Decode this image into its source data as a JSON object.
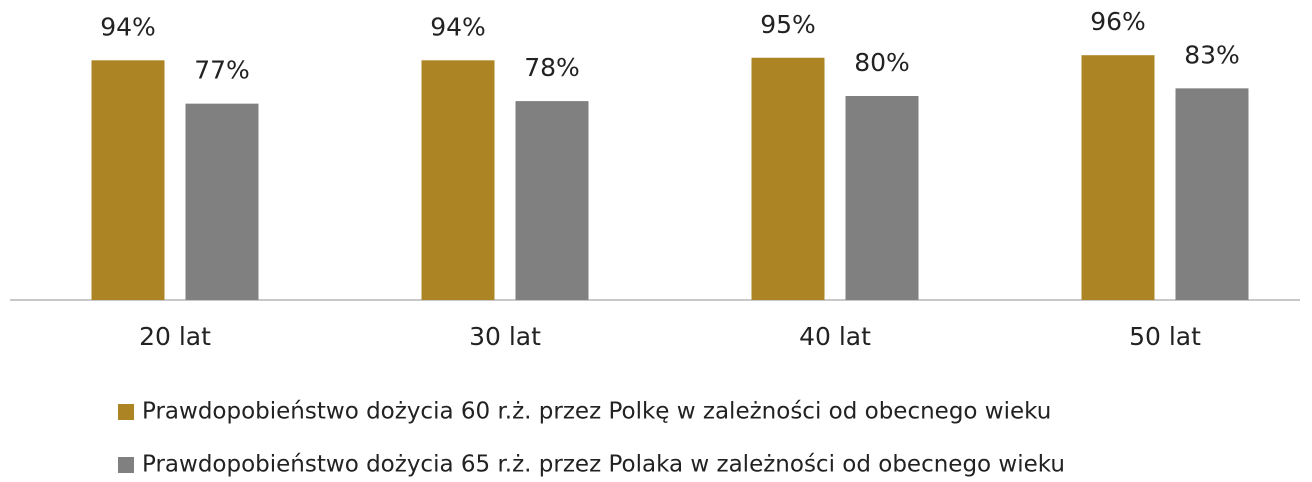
{
  "chart_data": {
    "type": "bar",
    "categories": [
      "20 lat",
      "30 lat",
      "40 lat",
      "50 lat"
    ],
    "series": [
      {
        "name": "Prawdopobieństwo dożycia 60 r.ż. przez Polkę w zależności od obecnego wieku",
        "color": "#ad8423",
        "values": [
          94,
          94,
          95,
          96
        ],
        "value_labels": [
          "94%",
          "94%",
          "95%",
          "96%"
        ]
      },
      {
        "name": "Prawdopobieństwo dożycia 65 r.ż. przez Polaka w zależności od obecnego wieku",
        "color": "#808080",
        "values": [
          77,
          78,
          80,
          83
        ],
        "value_labels": [
          "77%",
          "78%",
          "80%",
          "83%"
        ]
      }
    ],
    "ylim": [
      0,
      100
    ]
  }
}
